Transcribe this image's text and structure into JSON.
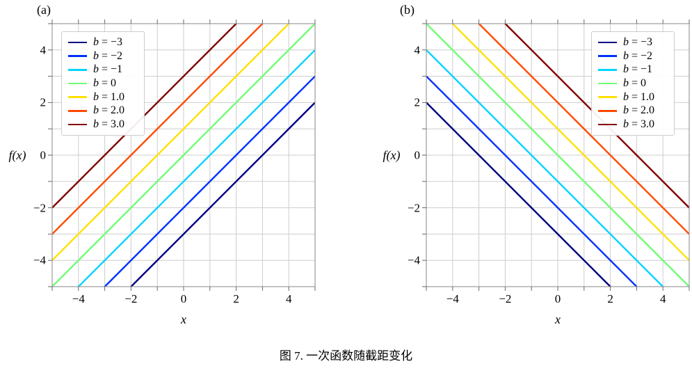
{
  "figure": {
    "caption": "图 7. 一次函数随截距变化"
  },
  "chart_data": [
    {
      "type": "line",
      "panel_label": "(a)",
      "xlabel": "x",
      "ylabel": "f(x)",
      "xlim": [
        -5,
        5
      ],
      "ylim": [
        -5,
        5
      ],
      "xticks": [
        -4,
        -2,
        0,
        2,
        4
      ],
      "yticks": [
        -4,
        -2,
        0,
        2,
        4
      ],
      "minor_step": 1,
      "grid": true,
      "legend_position": "top-left",
      "slope": 1,
      "series": [
        {
          "name": "b = −3",
          "intercept": -3,
          "color": "#000080"
        },
        {
          "name": "b = −2",
          "intercept": -2,
          "color": "#0030FF"
        },
        {
          "name": "b = −1",
          "intercept": -1,
          "color": "#00D4FF"
        },
        {
          "name": "b = 0",
          "intercept": 0,
          "color": "#73FB78"
        },
        {
          "name": "b = 1.0",
          "intercept": 1,
          "color": "#FFE100"
        },
        {
          "name": "b = 2.0",
          "intercept": 2,
          "color": "#FF4900"
        },
        {
          "name": "b = 3.0",
          "intercept": 3,
          "color": "#800000"
        }
      ]
    },
    {
      "type": "line",
      "panel_label": "(b)",
      "xlabel": "x",
      "ylabel": "f(x)",
      "xlim": [
        -5,
        5
      ],
      "ylim": [
        -5,
        5
      ],
      "xticks": [
        -4,
        -2,
        0,
        2,
        4
      ],
      "yticks": [
        -4,
        -2,
        0,
        2,
        4
      ],
      "minor_step": 1,
      "grid": true,
      "legend_position": "top-right",
      "slope": -1,
      "series": [
        {
          "name": "b = −3",
          "intercept": -3,
          "color": "#000080"
        },
        {
          "name": "b = −2",
          "intercept": -2,
          "color": "#0030FF"
        },
        {
          "name": "b = −1",
          "intercept": -1,
          "color": "#00D4FF"
        },
        {
          "name": "b = 0",
          "intercept": 0,
          "color": "#73FB78"
        },
        {
          "name": "b = 1.0",
          "intercept": 1,
          "color": "#FFE100"
        },
        {
          "name": "b = 2.0",
          "intercept": 2,
          "color": "#FF4900"
        },
        {
          "name": "b = 3.0",
          "intercept": 3,
          "color": "#800000"
        }
      ]
    }
  ]
}
